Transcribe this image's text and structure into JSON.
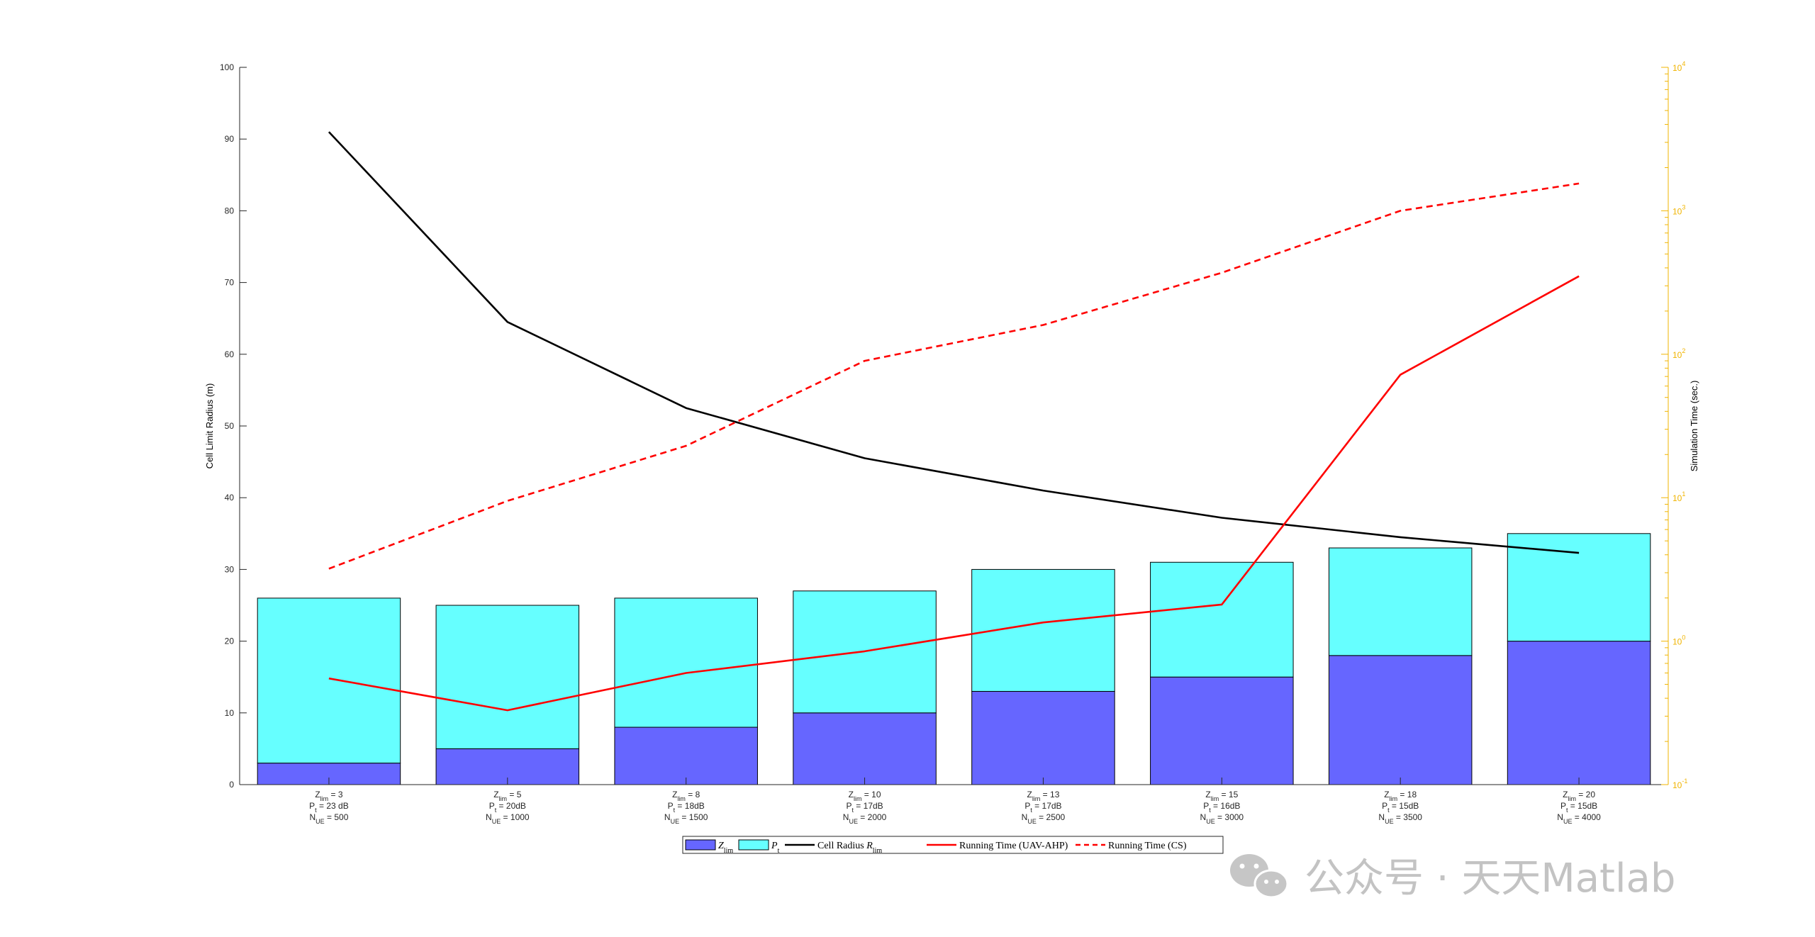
{
  "chart_data": {
    "type": "bar",
    "categories": [
      {
        "line1": {
          "sym": "Z",
          "sub": "lim",
          "rest": " = 3"
        },
        "line2": {
          "sym": "P",
          "sub": "t",
          "rest": " = 23 dB"
        },
        "line3": {
          "sym": "N",
          "sub": "UE",
          "rest": " = 500"
        }
      },
      {
        "line1": {
          "sym": "Z",
          "sub": "lim",
          "rest": " = 5"
        },
        "line2": {
          "sym": "P",
          "sub": "t",
          "rest": " = 20dB"
        },
        "line3": {
          "sym": "N",
          "sub": "UE",
          "rest": " = 1000"
        }
      },
      {
        "line1": {
          "sym": "Z",
          "sub": "lim",
          "rest": " = 8"
        },
        "line2": {
          "sym": "P",
          "sub": "t",
          "rest": " = 18dB"
        },
        "line3": {
          "sym": "N",
          "sub": "UE",
          "rest": " = 1500"
        }
      },
      {
        "line1": {
          "sym": "Z",
          "sub": "lim",
          "rest": " = 10"
        },
        "line2": {
          "sym": "P",
          "sub": "t",
          "rest": " = 17dB"
        },
        "line3": {
          "sym": "N",
          "sub": "UE",
          "rest": " = 2000"
        }
      },
      {
        "line1": {
          "sym": "Z",
          "sub": "lim",
          "rest": " = 13"
        },
        "line2": {
          "sym": "P",
          "sub": "t",
          "rest": " = 17dB"
        },
        "line3": {
          "sym": "N",
          "sub": "UE",
          "rest": " = 2500"
        }
      },
      {
        "line1": {
          "sym": "Z",
          "sub": "lim",
          "rest": " = 15"
        },
        "line2": {
          "sym": "P",
          "sub": "t",
          "rest": " = 16dB"
        },
        "line3": {
          "sym": "N",
          "sub": "UE",
          "rest": " = 3000"
        }
      },
      {
        "line1": {
          "sym": "Z",
          "sub": "lim",
          "rest": " = 18"
        },
        "line2": {
          "sym": "P",
          "sub": "t",
          "rest": " = 15dB"
        },
        "line3": {
          "sym": "N",
          "sub": "UE",
          "rest": " = 3500"
        }
      },
      {
        "line1": {
          "sym": "Z",
          "sub": "lim",
          "rest": " = 20"
        },
        "line2": {
          "sym": "P",
          "sub": "t",
          "rest": " = 15dB"
        },
        "line3": {
          "sym": "N",
          "sub": "UE",
          "rest": " = 4000"
        }
      }
    ],
    "stacked_bars": [
      {
        "name": "Z_lim",
        "legend": {
          "sym": "Z",
          "sub": "lim"
        },
        "color": "#6666ff",
        "values": [
          3,
          5,
          8,
          10,
          13,
          15,
          18,
          20
        ]
      },
      {
        "name": "P_t",
        "legend": {
          "sym": "P",
          "sub": "t"
        },
        "color": "#66ffff",
        "values": [
          23,
          20,
          18,
          17,
          17,
          16,
          15,
          15
        ]
      }
    ],
    "lines": [
      {
        "name": "Cell Radius R_lim",
        "legend": {
          "text": "Cell Radius ",
          "sym": "R",
          "sub": "lim"
        },
        "axis": "left",
        "color": "#000000",
        "style": "solid",
        "values": [
          91,
          64.5,
          52.5,
          45.5,
          41,
          37.2,
          34.5,
          32.3
        ]
      },
      {
        "name": "Running Time (UAV-AHP)",
        "legend": {
          "text": "Running Time (UAV-AHP)"
        },
        "axis": "right",
        "color": "#ff0000",
        "style": "solid",
        "values": [
          0.55,
          0.33,
          0.6,
          0.85,
          1.35,
          1.8,
          72,
          350
        ]
      },
      {
        "name": "Running Time (CS)",
        "legend": {
          "text": "Running Time (CS)"
        },
        "axis": "right",
        "color": "#ff0000",
        "style": "dashed",
        "values": [
          3.2,
          9.5,
          23,
          90,
          160,
          370,
          1000,
          1550
        ]
      }
    ],
    "left_axis": {
      "label": "Cell Limit Radius (m)",
      "ylim": [
        0,
        100
      ],
      "ticks": [
        "0",
        "10",
        "20",
        "30",
        "40",
        "50",
        "60",
        "70",
        "80",
        "90",
        "100"
      ],
      "color": "#000000"
    },
    "right_axis": {
      "label": "Simulation Time (sec.)",
      "scale": "log",
      "ylim": [
        0.1,
        10000
      ],
      "ticks": [
        {
          "base": "10",
          "exp": "-1"
        },
        {
          "base": "10",
          "exp": "0"
        },
        {
          "base": "10",
          "exp": "1"
        },
        {
          "base": "10",
          "exp": "2"
        },
        {
          "base": "10",
          "exp": "3"
        },
        {
          "base": "10",
          "exp": "4"
        }
      ],
      "color": "#f0b400"
    },
    "legend_position": "bottom-center",
    "grid": false
  },
  "watermark": {
    "text": "公众号 · 天天Matlab",
    "icon": "wechat-icon"
  }
}
